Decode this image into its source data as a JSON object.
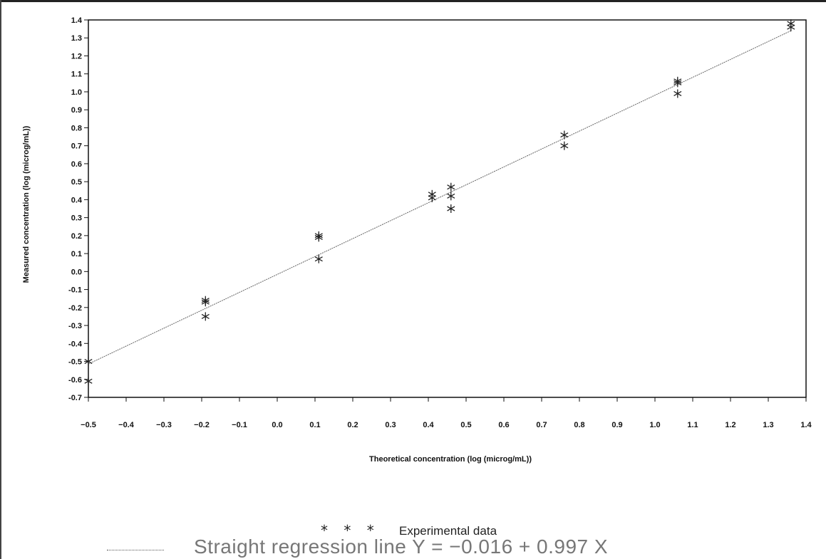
{
  "chart_data": {
    "type": "scatter",
    "title": "",
    "xlabel": "Theoretical concentration (log (microg/mL))",
    "ylabel": "Measured concentration (log (microg/mL))",
    "xlim": [
      -0.5,
      1.4
    ],
    "ylim": [
      -0.7,
      1.4
    ],
    "x_ticks": [
      "-0.5",
      "-0.4",
      "-0.3",
      "-0.2",
      "-0.1",
      "0.0",
      "0.1",
      "0.2",
      "0.3",
      "0.4",
      "0.5",
      "0.6",
      "0.7",
      "0.8",
      "0.9",
      "1.0",
      "1.1",
      "1.2",
      "1.3",
      "1.4"
    ],
    "y_ticks": [
      "-0.7",
      "-0.6",
      "-0.5",
      "-0.4",
      "-0.3",
      "-0.2",
      "-0.1",
      "0.0",
      "0.1",
      "0.2",
      "0.3",
      "0.4",
      "0.5",
      "0.6",
      "0.7",
      "0.8",
      "0.9",
      "1.0",
      "1.1",
      "1.2",
      "1.3",
      "1.4"
    ],
    "grid": false,
    "series": [
      {
        "name": "Experimental data",
        "marker": "asterisk",
        "points": [
          {
            "x": -0.5,
            "y": -0.5
          },
          {
            "x": -0.5,
            "y": -0.61
          },
          {
            "x": -0.19,
            "y": -0.16
          },
          {
            "x": -0.19,
            "y": -0.17
          },
          {
            "x": -0.19,
            "y": -0.25
          },
          {
            "x": 0.11,
            "y": 0.2
          },
          {
            "x": 0.11,
            "y": 0.19
          },
          {
            "x": 0.11,
            "y": 0.07
          },
          {
            "x": 0.41,
            "y": 0.43
          },
          {
            "x": 0.41,
            "y": 0.41
          },
          {
            "x": 0.46,
            "y": 0.47
          },
          {
            "x": 0.46,
            "y": 0.42
          },
          {
            "x": 0.46,
            "y": 0.35
          },
          {
            "x": 0.76,
            "y": 0.76
          },
          {
            "x": 0.76,
            "y": 0.7
          },
          {
            "x": 1.06,
            "y": 1.06
          },
          {
            "x": 1.06,
            "y": 1.05
          },
          {
            "x": 1.06,
            "y": 0.99
          },
          {
            "x": 1.36,
            "y": 1.38
          },
          {
            "x": 1.36,
            "y": 1.36
          }
        ]
      },
      {
        "name": "Straight regression line",
        "type": "line",
        "intercept": -0.016,
        "slope": 0.997,
        "x_range": [
          -0.5,
          1.36
        ]
      }
    ],
    "legend": {
      "position": "bottom-center",
      "experimental_marks": "* * *",
      "experimental_label": "Experimental data",
      "fit_label": "Straight regression line Y = −0.016 + 0.997 X"
    },
    "colors": {
      "points": "#222222",
      "line": "#666666",
      "frame": "#111111"
    }
  }
}
